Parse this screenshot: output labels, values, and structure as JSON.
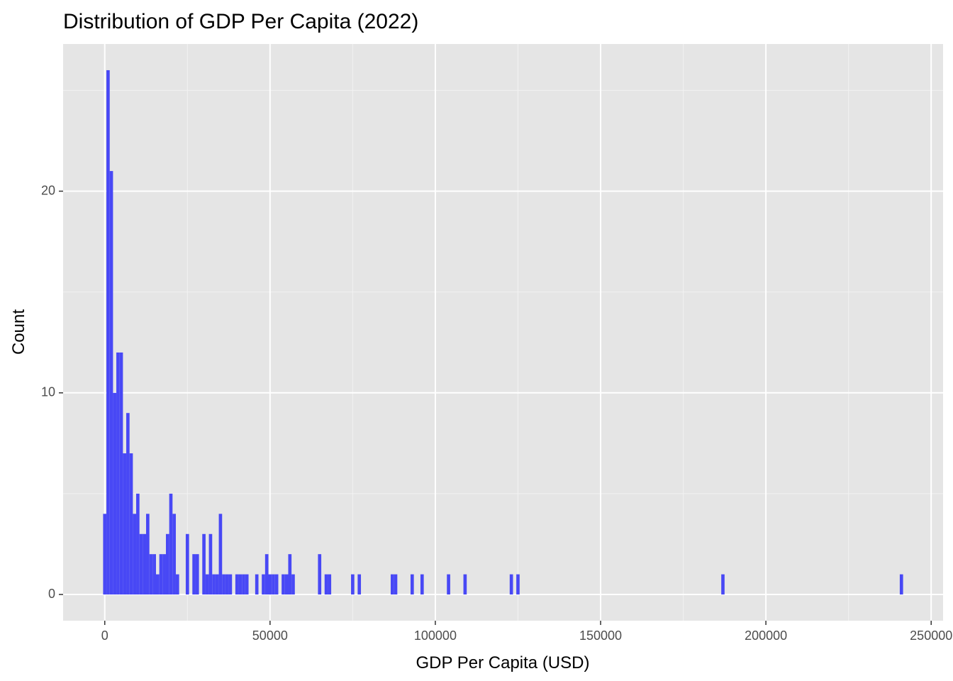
{
  "chart_data": {
    "type": "histogram",
    "title": "Distribution of GDP Per Capita (2022)",
    "x_label": "GDP Per Capita (USD)",
    "y_label": "Count",
    "color": "#4848f5",
    "bins": [
      -500,
      500,
      1500,
      2500,
      3500,
      4500,
      5500,
      6500,
      7500,
      8500,
      9500,
      10500,
      11500,
      12500,
      13500,
      14500,
      15500,
      16500,
      17500,
      18500,
      19500,
      20500,
      21500,
      22500,
      23500,
      24500,
      25500,
      26500,
      27500,
      28500,
      29500,
      30500,
      31500,
      32500,
      33500,
      34500,
      35500,
      36500,
      37500,
      38500,
      39500,
      40500,
      41500,
      42500,
      43500,
      44500,
      45500,
      46500,
      47500,
      48500,
      49500,
      50500,
      51500,
      52500,
      53500,
      54500,
      55500,
      56500,
      57500,
      58500,
      59500,
      60500,
      61500,
      62500,
      63500,
      64500,
      65500,
      66500,
      67500,
      68500,
      69500,
      70500,
      71500,
      72500,
      73500,
      74500,
      75500,
      76500,
      77500,
      78500,
      79500,
      80500,
      81500,
      82500,
      83500,
      84500,
      85500,
      86500,
      87500,
      88500,
      89500,
      90500,
      91500,
      92500,
      93500,
      94500,
      95500,
      96500,
      97500,
      98500,
      99500,
      100500,
      101500,
      102500,
      103500,
      104500,
      105500,
      106500,
      107500,
      108500,
      109500,
      110500,
      111500,
      112500,
      113500,
      114500,
      115500,
      116500,
      117500,
      118500,
      119500,
      120500,
      121500,
      122500,
      123500,
      124500,
      125500,
      126500,
      127500,
      128500,
      129500,
      130500,
      131500,
      132500,
      133500,
      134500,
      135500,
      136500,
      137500,
      138500,
      139500,
      140500,
      141500,
      142500,
      143500,
      144500,
      145500,
      146500,
      147500,
      148500,
      149500,
      150500,
      151500,
      152500,
      153500,
      154500,
      155500,
      156500,
      157500,
      158500,
      159500,
      160500,
      161500,
      162500,
      163500,
      164500,
      165500,
      166500,
      167500,
      168500,
      169500,
      170500,
      171500,
      172500,
      173500,
      174500,
      175500,
      176500,
      177500,
      178500,
      179500,
      180500,
      181500,
      182500,
      183500,
      184500,
      185500,
      186500,
      187500,
      188500,
      189500,
      190500,
      191500,
      192500,
      193500,
      194500,
      195500,
      196500,
      197500,
      198500,
      199500,
      200500,
      201500,
      202500,
      203500,
      204500,
      205500,
      206500,
      207500,
      208500,
      209500,
      210500,
      211500,
      212500,
      213500,
      214500,
      215500,
      216500,
      217500,
      218500,
      219500,
      220500,
      221500,
      222500,
      223500,
      224500,
      225500,
      226500,
      227500,
      228500,
      229500,
      230500,
      231500,
      232500,
      233500,
      234500,
      235500,
      236500,
      237500,
      238500,
      239500,
      240500,
      241500
    ],
    "counts": [
      4,
      26,
      21,
      10,
      12,
      12,
      7,
      9,
      7,
      4,
      5,
      3,
      3,
      4,
      2,
      2,
      1,
      2,
      2,
      3,
      5,
      4,
      1,
      0,
      0,
      3,
      0,
      2,
      2,
      0,
      3,
      1,
      3,
      1,
      1,
      4,
      1,
      1,
      1,
      0,
      1,
      1,
      1,
      1,
      0,
      0,
      1,
      0,
      1,
      2,
      1,
      1,
      1,
      0,
      1,
      1,
      2,
      1,
      0,
      0,
      0,
      0,
      0,
      0,
      0,
      2,
      0,
      1,
      1,
      0,
      0,
      0,
      0,
      0,
      0,
      1,
      0,
      1,
      0,
      0,
      0,
      0,
      0,
      0,
      0,
      0,
      0,
      1,
      1,
      0,
      0,
      0,
      0,
      1,
      0,
      0,
      1,
      0,
      0,
      0,
      0,
      0,
      0,
      0,
      1,
      0,
      0,
      0,
      0,
      1,
      0,
      0,
      0,
      0,
      0,
      0,
      0,
      0,
      0,
      0,
      0,
      0,
      0,
      1,
      0,
      1,
      0,
      0,
      0,
      0,
      0,
      0,
      0,
      0,
      0,
      0,
      0,
      0,
      0,
      0,
      0,
      0,
      0,
      0,
      0,
      0,
      0,
      0,
      0,
      0,
      0,
      0,
      0,
      0,
      0,
      0,
      0,
      0,
      0,
      0,
      0,
      0,
      0,
      0,
      0,
      0,
      0,
      0,
      0,
      0,
      0,
      0,
      0,
      0,
      0,
      0,
      0,
      0,
      0,
      0,
      0,
      0,
      0,
      0,
      0,
      0,
      0,
      1,
      0,
      0,
      0,
      0,
      0,
      0,
      0,
      0,
      0,
      0,
      0,
      0,
      0,
      0,
      0,
      0,
      0,
      0,
      0,
      0,
      0,
      0,
      0,
      0,
      0,
      0,
      0,
      0,
      0,
      0,
      0,
      0,
      0,
      0,
      0,
      0,
      0,
      0,
      0,
      0,
      0,
      0,
      0,
      0,
      0,
      0,
      0,
      0,
      0,
      0,
      0,
      0,
      0,
      1
    ],
    "xlim": [
      -12600,
      253600
    ],
    "ylim": [
      -1.3,
      27.3
    ],
    "xticks": [
      0,
      50000,
      100000,
      150000,
      200000,
      250000
    ],
    "yticks": [
      0,
      10,
      20
    ],
    "x_minor_ticks": [
      25000,
      75000,
      125000,
      175000,
      225000
    ],
    "y_minor_ticks": [
      5,
      15,
      25
    ],
    "grid": true
  }
}
